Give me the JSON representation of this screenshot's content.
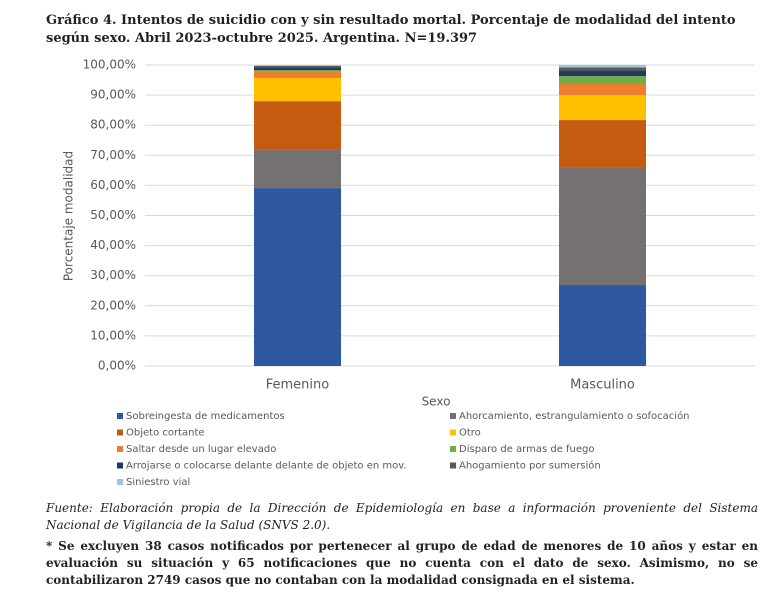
{
  "chart_data": {
    "type": "stacked-bar",
    "title": "Gráfico 4. Intentos de suicidio con y sin resultado mortal. Porcentaje de modalidad del intento según sexo. Abril 2023-octubre 2025. Argentina. N=19.397",
    "x_label": "Sexo",
    "y_label": "Porcentaje modalidad",
    "categories": [
      "Femenino",
      "Masculino"
    ],
    "series": [
      {
        "name": "Sobreingesta de medicamentos",
        "color": "#2e58a0",
        "values": [
          59.1,
          26.9
        ]
      },
      {
        "name": "Ahorcamiento, estrangulamiento o sofocación",
        "color": "#757170",
        "values": [
          12.7,
          38.9
        ]
      },
      {
        "name": "Objeto cortante",
        "color": "#c55a11",
        "values": [
          16.2,
          15.9
        ]
      },
      {
        "name": "Otro",
        "color": "#ffc000",
        "values": [
          7.7,
          8.3
        ]
      },
      {
        "name": "Saltar desde un lugar elevado",
        "color": "#ed7d31",
        "values": [
          2.0,
          3.7
        ]
      },
      {
        "name": "Disparo de armas de fuego",
        "color": "#70ad47",
        "values": [
          0.6,
          2.6
        ]
      },
      {
        "name": "Arrojarse o colocarse delante delante de objeto en mov.",
        "color": "#1f3864",
        "values": [
          0.9,
          1.7
        ]
      },
      {
        "name": "Ahogamiento por sumersión",
        "color": "#595959",
        "values": [
          0.5,
          1.2
        ]
      },
      {
        "name": "Siniestro vial",
        "color": "#9dc3e6",
        "values": [
          0.3,
          0.8
        ]
      }
    ],
    "ylim": [
      0,
      100
    ],
    "yticks": [
      {
        "value": 0,
        "label": "0,00%"
      },
      {
        "value": 10,
        "label": "10,00%"
      },
      {
        "value": 20,
        "label": "20,00%"
      },
      {
        "value": 30,
        "label": "30,00%"
      },
      {
        "value": 40,
        "label": "40,00%"
      },
      {
        "value": 50,
        "label": "50,00%"
      },
      {
        "value": 60,
        "label": "60,00%"
      },
      {
        "value": 70,
        "label": "70,00%"
      },
      {
        "value": 80,
        "label": "80,00%"
      },
      {
        "value": 90,
        "label": "90,00%"
      },
      {
        "value": 100,
        "label": "100,00%"
      }
    ],
    "grid": true,
    "source": "Fuente: Elaboración propia de la Dirección de Epidemiología en base a información proveniente del Sistema Nacional de Vigilancia de la Salud (SNVS 2.0).",
    "note": "* Se excluyen 38 casos notificados por pertenecer al grupo de edad de menores de 10 años y estar en evaluación su situación y 65 notificaciones que no cuenta con el dato de sexo. Asimismo, no se contabilizaron 2749 casos que no contaban con la modalidad consignada en el sistema."
  }
}
